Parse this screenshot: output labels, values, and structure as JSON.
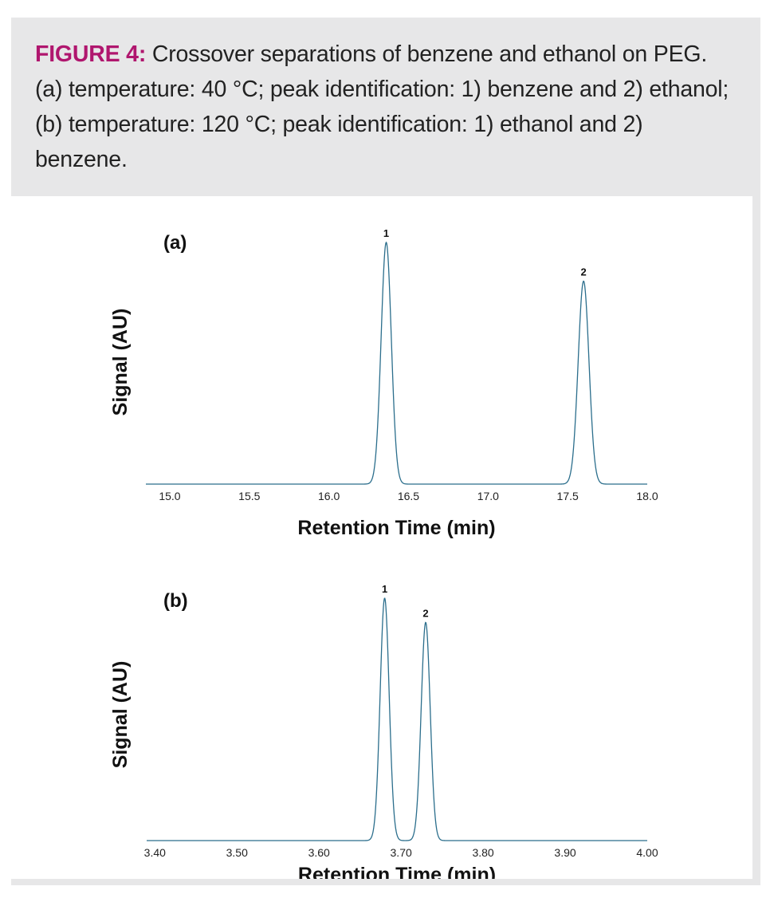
{
  "caption": {
    "label": "FIGURE 4:",
    "text": " Crossover separations of benzene and ethanol on PEG. (a) temperature: 40 °C; peak identification: 1) benzene and 2) ethanol; (b) temperature: 120 °C; peak identification: 1) ethanol and 2) benzene."
  },
  "colors": {
    "caption_label": "#b0166e",
    "trace": "#2b6e8c",
    "frame": "#e7e7e8"
  },
  "chart_data": [
    {
      "type": "line",
      "panel_label": "(a)",
      "xlabel": "Retention Time (min)",
      "ylabel": "Signal (AU)",
      "xlim": [
        14.85,
        18.0
      ],
      "x_ticks": [
        "15.0",
        "15.5",
        "16.0",
        "16.5",
        "17.0",
        "17.5",
        "18.0"
      ],
      "baseline": 0.0,
      "peaks": [
        {
          "label": "1",
          "x": 16.36,
          "height": 1.0,
          "width_sigma": 0.032
        },
        {
          "label": "2",
          "x": 17.6,
          "height": 0.84,
          "width_sigma": 0.034
        }
      ]
    },
    {
      "type": "line",
      "panel_label": "(b)",
      "xlabel": "Retention Time (min)",
      "ylabel": "Signal (AU)",
      "xlim": [
        3.39,
        4.0
      ],
      "x_ticks": [
        "3.40",
        "3.50",
        "3.60",
        "3.70",
        "3.80",
        "3.90",
        "4.00"
      ],
      "baseline": 0.0,
      "peaks": [
        {
          "label": "1",
          "x": 3.68,
          "height": 1.0,
          "width_sigma": 0.0055
        },
        {
          "label": "2",
          "x": 3.73,
          "height": 0.9,
          "width_sigma": 0.0055
        }
      ]
    }
  ]
}
